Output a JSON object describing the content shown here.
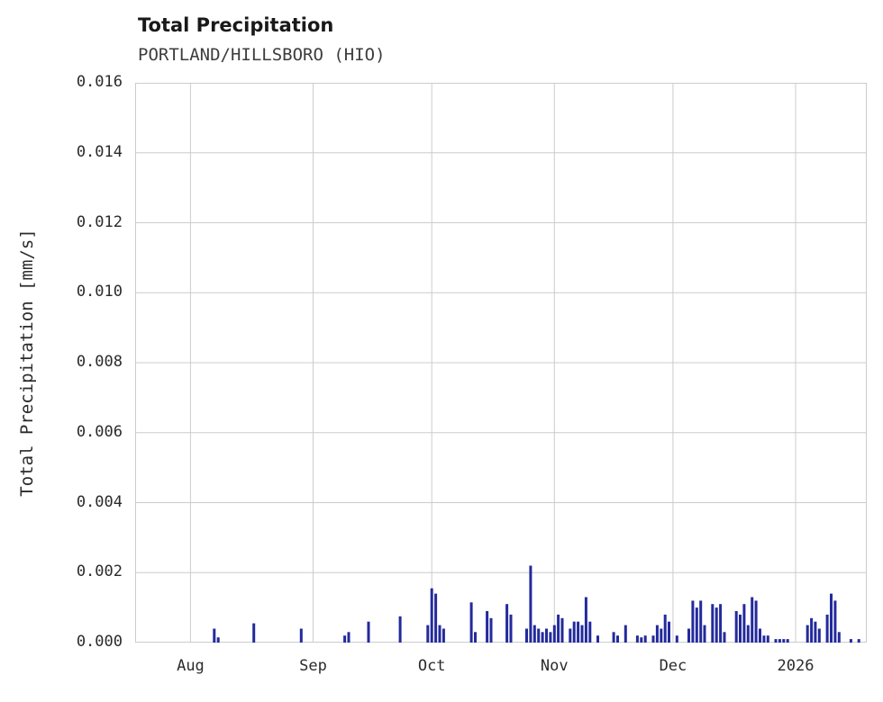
{
  "chart_data": {
    "type": "bar",
    "title": "Total Precipitation",
    "subtitle": "PORTLAND/HILLSBORO (HIO)",
    "xlabel": "",
    "ylabel": "Total Precipitation [mm/s]",
    "ylim": [
      0,
      0.016
    ],
    "ytick_labels": [
      "0.000",
      "0.002",
      "0.004",
      "0.006",
      "0.008",
      "0.010",
      "0.012",
      "0.014",
      "0.016"
    ],
    "xtick_labels": [
      "Aug",
      "Sep",
      "Oct",
      "Nov",
      "Dec",
      "2026"
    ],
    "xtick_days": [
      14,
      45,
      75,
      106,
      136,
      167
    ],
    "x_range_days": [
      0,
      185
    ],
    "grid": true,
    "legend": "none",
    "bar_color": "#232a9c",
    "grid_color": "#cccccc",
    "background_color": "#ffffff",
    "points": [
      [
        20,
        0.0004
      ],
      [
        21,
        0.00015
      ],
      [
        30,
        0.00055
      ],
      [
        42,
        0.0004
      ],
      [
        53,
        0.0002
      ],
      [
        54,
        0.0003
      ],
      [
        59,
        0.0006
      ],
      [
        67,
        0.00075
      ],
      [
        74,
        0.0005
      ],
      [
        75,
        0.00155
      ],
      [
        76,
        0.0014
      ],
      [
        77,
        0.0005
      ],
      [
        78,
        0.0004
      ],
      [
        85,
        0.00115
      ],
      [
        86,
        0.0003
      ],
      [
        89,
        0.0009
      ],
      [
        90,
        0.0007
      ],
      [
        94,
        0.0011
      ],
      [
        95,
        0.0008
      ],
      [
        99,
        0.0004
      ],
      [
        100,
        0.0022
      ],
      [
        101,
        0.0005
      ],
      [
        102,
        0.0004
      ],
      [
        103,
        0.0003
      ],
      [
        104,
        0.0004
      ],
      [
        105,
        0.0003
      ],
      [
        106,
        0.0005
      ],
      [
        107,
        0.0008
      ],
      [
        108,
        0.0007
      ],
      [
        110,
        0.0004
      ],
      [
        111,
        0.0006
      ],
      [
        112,
        0.0006
      ],
      [
        113,
        0.0005
      ],
      [
        114,
        0.0013
      ],
      [
        115,
        0.0006
      ],
      [
        117,
        0.0002
      ],
      [
        121,
        0.0003
      ],
      [
        122,
        0.0002
      ],
      [
        124,
        0.0005
      ],
      [
        127,
        0.0002
      ],
      [
        128,
        0.00015
      ],
      [
        129,
        0.0002
      ],
      [
        131,
        0.0002
      ],
      [
        132,
        0.0005
      ],
      [
        133,
        0.0004
      ],
      [
        134,
        0.0008
      ],
      [
        135,
        0.0006
      ],
      [
        137,
        0.0002
      ],
      [
        140,
        0.0004
      ],
      [
        141,
        0.0012
      ],
      [
        142,
        0.001
      ],
      [
        143,
        0.0012
      ],
      [
        144,
        0.0005
      ],
      [
        146,
        0.0011
      ],
      [
        147,
        0.001
      ],
      [
        148,
        0.0011
      ],
      [
        149,
        0.0003
      ],
      [
        152,
        0.0009
      ],
      [
        153,
        0.0008
      ],
      [
        154,
        0.0011
      ],
      [
        155,
        0.0005
      ],
      [
        156,
        0.0013
      ],
      [
        157,
        0.0012
      ],
      [
        158,
        0.0004
      ],
      [
        159,
        0.0002
      ],
      [
        160,
        0.0002
      ],
      [
        162,
        0.0001
      ],
      [
        163,
        0.0001
      ],
      [
        164,
        0.0001
      ],
      [
        165,
        0.0001
      ],
      [
        170,
        0.0005
      ],
      [
        171,
        0.0007
      ],
      [
        172,
        0.0006
      ],
      [
        173,
        0.0004
      ],
      [
        175,
        0.0008
      ],
      [
        176,
        0.0014
      ],
      [
        177,
        0.0012
      ],
      [
        178,
        0.0003
      ],
      [
        181,
        0.0001
      ],
      [
        183,
        0.0001
      ]
    ]
  }
}
